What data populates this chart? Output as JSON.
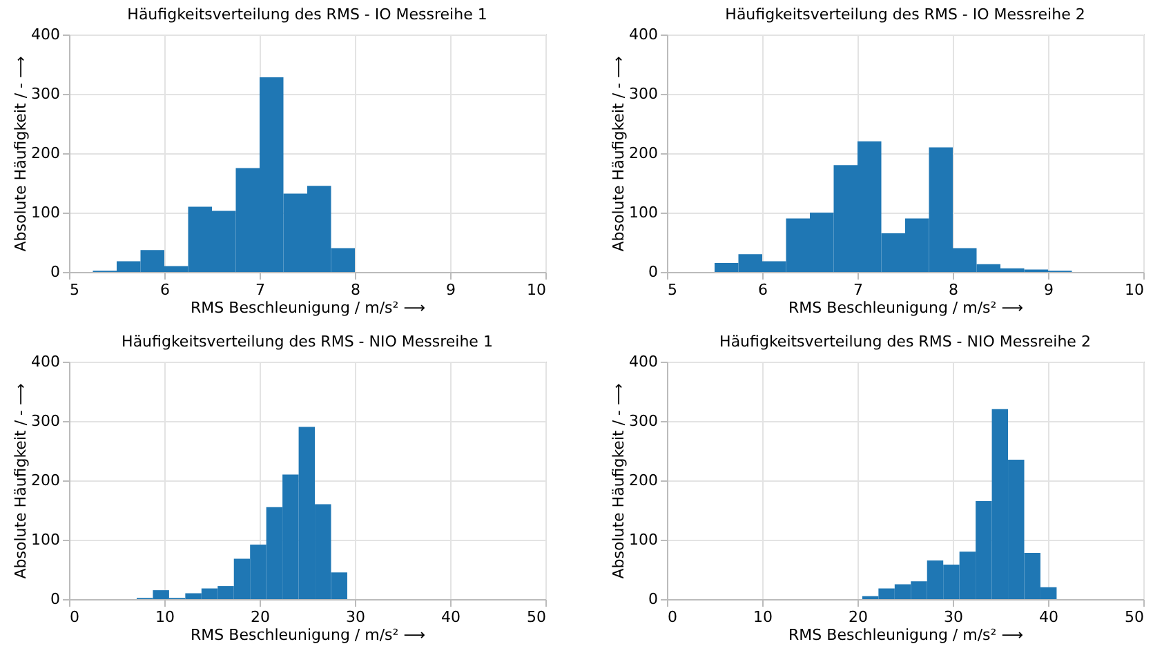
{
  "chart_data": [
    {
      "type": "histogram",
      "title": "Häufigkeitsverteilung des RMS - IO Messreihe 1",
      "xlabel": "RMS Beschleunigung / m/s² ⟶",
      "ylabel": "Absolute Häufigkeit / - ⟶",
      "color": "#1f77b4",
      "bins": [
        5.25,
        5.5,
        5.75,
        6.0,
        6.25,
        6.5,
        6.75,
        7.0,
        7.25,
        7.5,
        7.75,
        8.0
      ],
      "values": [
        2,
        18,
        37,
        10,
        110,
        103,
        175,
        328,
        132,
        145,
        40
      ],
      "xlim": [
        5,
        10
      ],
      "xticks": [
        5,
        6,
        7,
        8,
        9,
        10
      ],
      "ylim": [
        0,
        400
      ],
      "yticks": [
        0,
        100,
        200,
        300,
        400
      ],
      "grid": true
    },
    {
      "type": "histogram",
      "title": "Häufigkeitsverteilung des RMS - IO Messreihe 2",
      "xlabel": "RMS Beschleunigung / m/s² ⟶",
      "ylabel": "Absolute Häufigkeit / - ⟶",
      "color": "#1f77b4",
      "bins": [
        5.5,
        5.75,
        6.0,
        6.25,
        6.5,
        6.75,
        7.0,
        7.25,
        7.5,
        7.75,
        8.0,
        8.25,
        8.5,
        8.75,
        9.0,
        9.25
      ],
      "values": [
        15,
        30,
        18,
        90,
        100,
        180,
        220,
        65,
        90,
        210,
        40,
        13,
        6,
        4,
        2
      ],
      "xlim": [
        5,
        10
      ],
      "xticks": [
        5,
        6,
        7,
        8,
        9,
        10
      ],
      "ylim": [
        0,
        400
      ],
      "yticks": [
        0,
        100,
        200,
        300,
        400
      ],
      "grid": true
    },
    {
      "type": "histogram",
      "title": "Häufigkeitsverteilung des RMS - NIO Messreihe 1",
      "xlabel": "RMS Beschleunigung / m/s² ⟶",
      "ylabel": "Absolute Häufigkeit / - ⟶",
      "color": "#1f77b4",
      "bins": [
        7.1,
        8.8,
        10.5,
        12.2,
        13.9,
        15.6,
        17.3,
        19.0,
        20.7,
        22.4,
        24.1,
        25.8,
        27.5,
        29.2
      ],
      "values": [
        2,
        15,
        2,
        10,
        18,
        22,
        68,
        92,
        155,
        210,
        290,
        160,
        45
      ],
      "xlim": [
        0,
        50
      ],
      "xticks": [
        0,
        10,
        20,
        30,
        40,
        50
      ],
      "ylim": [
        0,
        400
      ],
      "yticks": [
        0,
        100,
        200,
        300,
        400
      ],
      "grid": true
    },
    {
      "type": "histogram",
      "title": "Häufigkeitsverteilung des RMS - NIO Messreihe 2",
      "xlabel": "RMS Beschleunigung / m/s² ⟶",
      "ylabel": "Absolute Häufigkeit / - ⟶",
      "color": "#1f77b4",
      "bins": [
        20.5,
        22.2,
        23.9,
        25.6,
        27.3,
        29.0,
        30.7,
        32.4,
        34.1,
        35.8,
        37.5,
        39.2,
        40.9
      ],
      "values": [
        5,
        18,
        25,
        30,
        65,
        58,
        80,
        165,
        320,
        235,
        78,
        20
      ],
      "xlim": [
        0,
        50
      ],
      "xticks": [
        0,
        10,
        20,
        30,
        40,
        50
      ],
      "ylim": [
        0,
        400
      ],
      "yticks": [
        0,
        100,
        200,
        300,
        400
      ],
      "grid": true
    }
  ]
}
